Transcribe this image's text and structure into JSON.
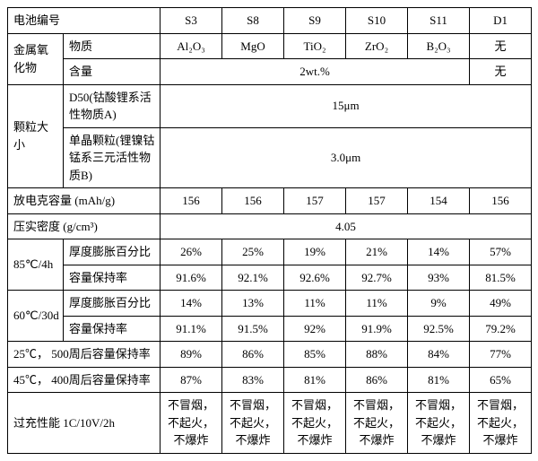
{
  "header": {
    "battery_no": "电池编号",
    "cols": [
      "S3",
      "S8",
      "S9",
      "S10",
      "S11",
      "D1"
    ]
  },
  "metal_oxide": {
    "group": "金属氧化物",
    "substance_label": "物质",
    "substances": [
      "Al₂O₃",
      "MgO",
      "TiO₂",
      "ZrO₂",
      "B₂O₃",
      "无"
    ],
    "content_label": "含量",
    "content_span": "2wt.%",
    "content_d1": "无"
  },
  "particle": {
    "group": "颗粒大小",
    "d50_label": "D50(钴酸锂系活性物质A)",
    "d50_value": "15μm",
    "single_label": "单晶颗粒(锂镍钴锰系三元活性物质B)",
    "single_value": "3.0μm"
  },
  "discharge": {
    "label": "放电克容量 (mAh/g)",
    "vals": [
      "156",
      "156",
      "157",
      "157",
      "154",
      "156"
    ]
  },
  "density": {
    "label": "压实密度 (g/cm³)",
    "value": "4.05"
  },
  "t85": {
    "group": "85℃/4h",
    "thick_label": "厚度膨胀百分比",
    "thick": [
      "26%",
      "25%",
      "19%",
      "21%",
      "14%",
      "57%"
    ],
    "cap_label": "容量保持率",
    "cap": [
      "91.6%",
      "92.1%",
      "92.6%",
      "92.7%",
      "93%",
      "81.5%"
    ]
  },
  "t60": {
    "group": "60℃/30d",
    "thick_label": "厚度膨胀百分比",
    "thick": [
      "14%",
      "13%",
      "11%",
      "11%",
      "9%",
      "49%"
    ],
    "cap_label": "容量保持率",
    "cap": [
      "91.1%",
      "91.5%",
      "92%",
      "91.9%",
      "92.5%",
      "79.2%"
    ]
  },
  "cycle25": {
    "label": "25℃，\n500周后容量保持率",
    "vals": [
      "89%",
      "86%",
      "85%",
      "88%",
      "84%",
      "77%"
    ]
  },
  "cycle45": {
    "label": "45℃，\n400周后容量保持率",
    "vals": [
      "87%",
      "83%",
      "81%",
      "86%",
      "81%",
      "65%"
    ]
  },
  "overcharge": {
    "label": "过充性能\n1C/10V/2h",
    "vals": [
      "不冒烟，不起火，不爆炸",
      "不冒烟，不起火，不爆炸",
      "不冒烟，不起火，不爆炸",
      "不冒烟，不起火，不爆炸",
      "不冒烟，不起火，不爆炸",
      "不冒烟，不起火，不爆炸"
    ]
  }
}
